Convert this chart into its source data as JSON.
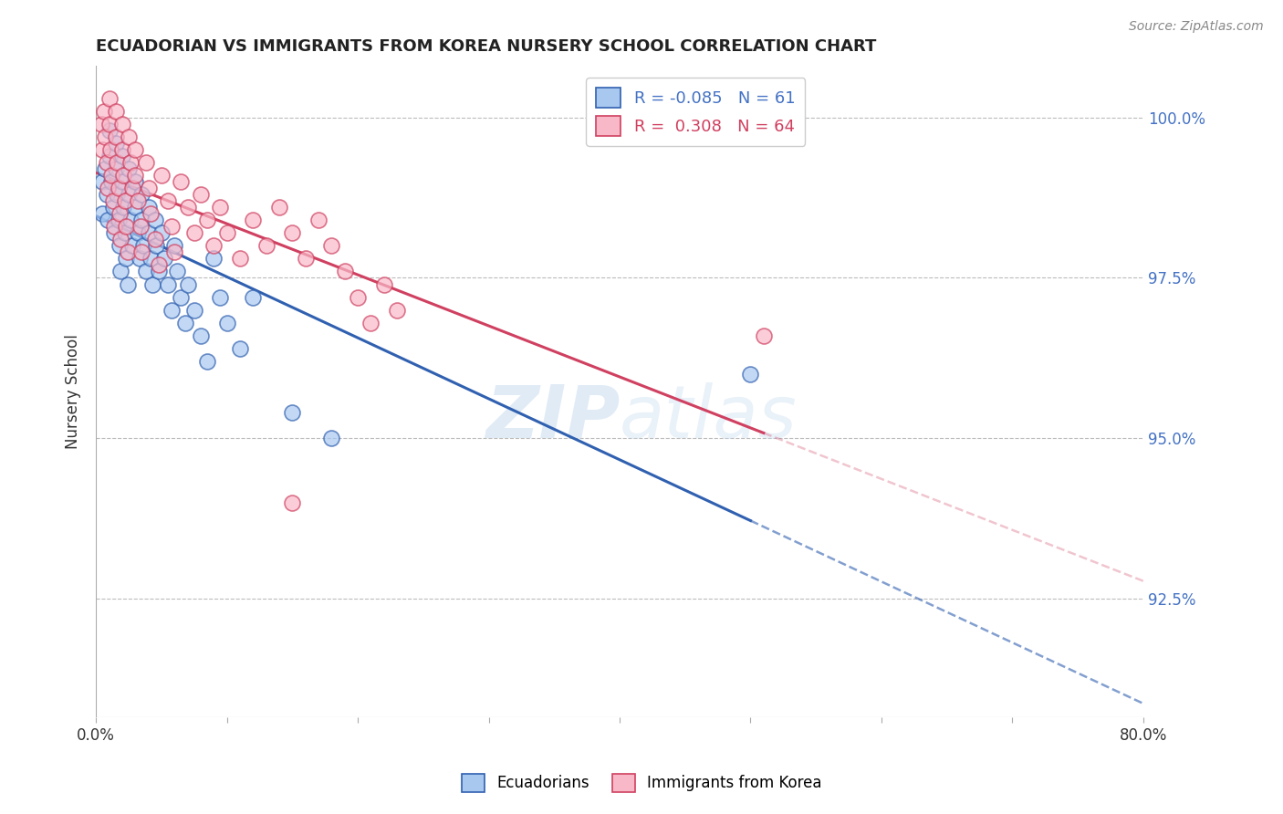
{
  "title": "ECUADORIAN VS IMMIGRANTS FROM KOREA NURSERY SCHOOL CORRELATION CHART",
  "source": "Source: ZipAtlas.com",
  "ylabel": "Nursery School",
  "xmin": 0.0,
  "xmax": 0.8,
  "ymin": 0.9065,
  "ymax": 1.008,
  "yticks": [
    0.925,
    0.95,
    0.975,
    1.0
  ],
  "ytick_labels": [
    "92.5%",
    "95.0%",
    "97.5%",
    "100.0%"
  ],
  "xticks": [
    0.0,
    0.1,
    0.2,
    0.3,
    0.4,
    0.5,
    0.6,
    0.7,
    0.8
  ],
  "xtick_labels": [
    "0.0%",
    "",
    "",
    "",
    "",
    "",
    "",
    "",
    "80.0%"
  ],
  "blue_R": -0.085,
  "blue_N": 61,
  "pink_R": 0.308,
  "pink_N": 64,
  "blue_color": "#A8C8F0",
  "pink_color": "#F8B8C8",
  "blue_line_color": "#3060B0",
  "pink_line_color": "#D04060",
  "legend_label_blue": "Ecuadorians",
  "legend_label_pink": "Immigrants from Korea",
  "blue_x": [
    0.005,
    0.005,
    0.007,
    0.008,
    0.009,
    0.01,
    0.01,
    0.012,
    0.013,
    0.014,
    0.015,
    0.015,
    0.016,
    0.017,
    0.018,
    0.019,
    0.02,
    0.02,
    0.021,
    0.022,
    0.023,
    0.024,
    0.025,
    0.025,
    0.026,
    0.028,
    0.03,
    0.03,
    0.032,
    0.033,
    0.035,
    0.035,
    0.036,
    0.038,
    0.04,
    0.04,
    0.042,
    0.043,
    0.045,
    0.046,
    0.048,
    0.05,
    0.052,
    0.055,
    0.058,
    0.06,
    0.062,
    0.065,
    0.068,
    0.07,
    0.075,
    0.08,
    0.085,
    0.09,
    0.095,
    0.1,
    0.11,
    0.12,
    0.15,
    0.18,
    0.5
  ],
  "blue_y": [
    0.99,
    0.985,
    0.992,
    0.988,
    0.984,
    0.998,
    0.994,
    0.99,
    0.986,
    0.982,
    0.996,
    0.992,
    0.988,
    0.984,
    0.98,
    0.976,
    0.994,
    0.99,
    0.986,
    0.982,
    0.978,
    0.974,
    0.992,
    0.988,
    0.984,
    0.98,
    0.99,
    0.986,
    0.982,
    0.978,
    0.988,
    0.984,
    0.98,
    0.976,
    0.986,
    0.982,
    0.978,
    0.974,
    0.984,
    0.98,
    0.976,
    0.982,
    0.978,
    0.974,
    0.97,
    0.98,
    0.976,
    0.972,
    0.968,
    0.974,
    0.97,
    0.966,
    0.962,
    0.978,
    0.972,
    0.968,
    0.964,
    0.972,
    0.954,
    0.95,
    0.96
  ],
  "pink_x": [
    0.004,
    0.005,
    0.006,
    0.007,
    0.008,
    0.009,
    0.01,
    0.01,
    0.011,
    0.012,
    0.013,
    0.014,
    0.015,
    0.015,
    0.016,
    0.017,
    0.018,
    0.019,
    0.02,
    0.02,
    0.021,
    0.022,
    0.023,
    0.024,
    0.025,
    0.026,
    0.028,
    0.03,
    0.03,
    0.032,
    0.034,
    0.035,
    0.038,
    0.04,
    0.042,
    0.045,
    0.048,
    0.05,
    0.055,
    0.058,
    0.06,
    0.065,
    0.07,
    0.075,
    0.08,
    0.085,
    0.09,
    0.095,
    0.1,
    0.11,
    0.12,
    0.13,
    0.14,
    0.15,
    0.16,
    0.17,
    0.18,
    0.19,
    0.2,
    0.21,
    0.22,
    0.23,
    0.51,
    0.15
  ],
  "pink_y": [
    0.999,
    0.995,
    1.001,
    0.997,
    0.993,
    0.989,
    1.003,
    0.999,
    0.995,
    0.991,
    0.987,
    0.983,
    1.001,
    0.997,
    0.993,
    0.989,
    0.985,
    0.981,
    0.999,
    0.995,
    0.991,
    0.987,
    0.983,
    0.979,
    0.997,
    0.993,
    0.989,
    0.995,
    0.991,
    0.987,
    0.983,
    0.979,
    0.993,
    0.989,
    0.985,
    0.981,
    0.977,
    0.991,
    0.987,
    0.983,
    0.979,
    0.99,
    0.986,
    0.982,
    0.988,
    0.984,
    0.98,
    0.986,
    0.982,
    0.978,
    0.984,
    0.98,
    0.986,
    0.982,
    0.978,
    0.984,
    0.98,
    0.976,
    0.972,
    0.968,
    0.974,
    0.97,
    0.966,
    0.94
  ],
  "watermark_zip": "ZIP",
  "watermark_atlas": "atlas",
  "background_color": "#FFFFFF",
  "grid_color": "#BBBBBB"
}
